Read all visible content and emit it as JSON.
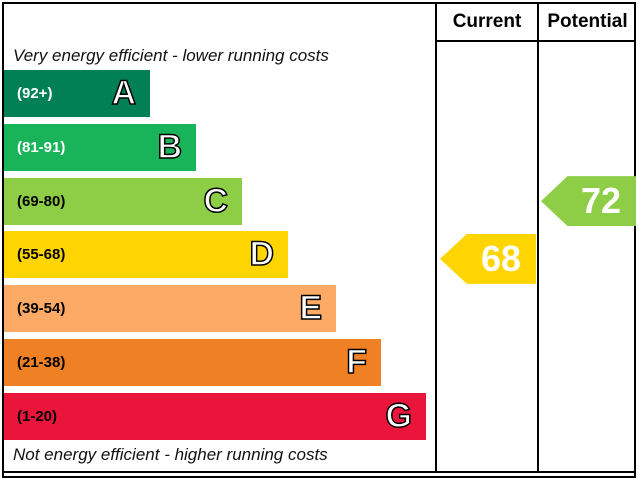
{
  "chart_data": {
    "type": "energy-rating",
    "columns": [
      "Current",
      "Potential"
    ],
    "top_caption": "Very energy efficient - lower running costs",
    "bottom_caption": "Not energy efficient - higher running costs",
    "bands": [
      {
        "letter": "A",
        "range": "(92+)",
        "color": "#008054"
      },
      {
        "letter": "B",
        "range": "(81-91)",
        "color": "#19b459"
      },
      {
        "letter": "C",
        "range": "(69-80)",
        "color": "#8dce46"
      },
      {
        "letter": "D",
        "range": "(55-68)",
        "color": "#ffd500"
      },
      {
        "letter": "E",
        "range": "(39-54)",
        "color": "#fcaa65"
      },
      {
        "letter": "F",
        "range": "(21-38)",
        "color": "#ef8023"
      },
      {
        "letter": "G",
        "range": "(1-20)",
        "color": "#e9153b"
      }
    ],
    "current": {
      "value": "68",
      "band": "D",
      "color": "#ffd500"
    },
    "potential": {
      "value": "72",
      "band": "C",
      "color": "#8dce46"
    }
  }
}
